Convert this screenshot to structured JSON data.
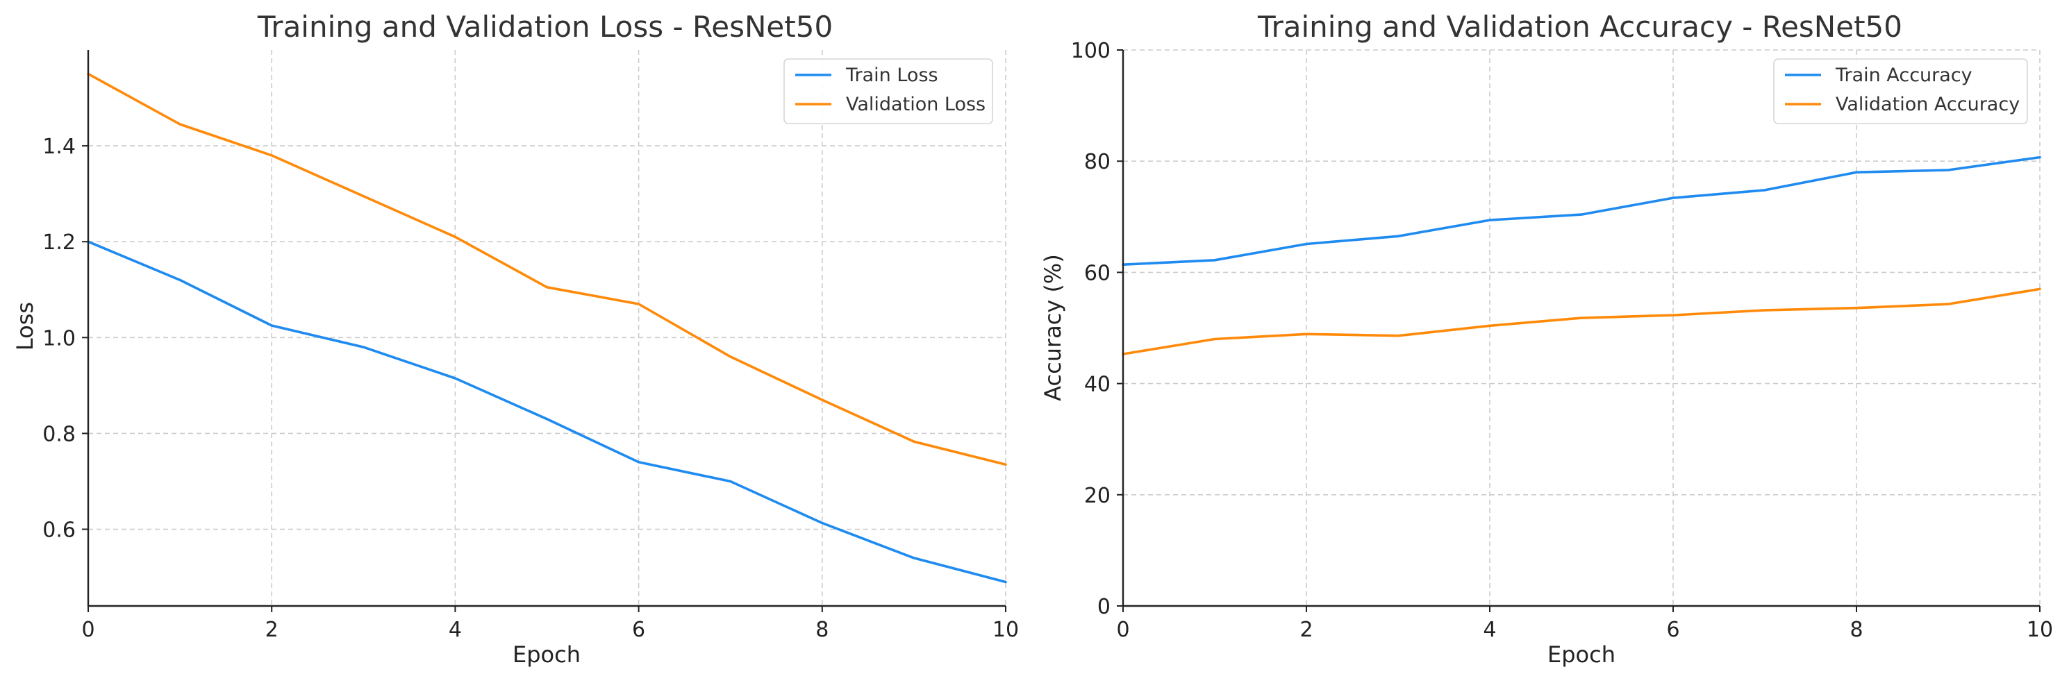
{
  "colors": {
    "train": "#1f8bf0",
    "validation": "#ff8a0a"
  },
  "chart_data": [
    {
      "type": "line",
      "title": "Training and Validation Loss - ResNet50",
      "xlabel": "Epoch",
      "ylabel": "Loss",
      "xlim": [
        0,
        10
      ],
      "ylim": [
        0.44,
        1.6
      ],
      "xticks": [
        0,
        2,
        4,
        6,
        8,
        10
      ],
      "yticks": [
        0.6,
        0.8,
        1.0,
        1.2,
        1.4
      ],
      "ytick_decimals": 1,
      "grid": true,
      "legend_position": "top-right",
      "x": [
        0,
        1,
        2,
        3,
        4,
        5,
        6,
        7,
        8,
        9,
        10
      ],
      "series": [
        {
          "name": "Train Loss",
          "color": "#1f8bf0",
          "values": [
            1.2,
            1.12,
            1.025,
            0.98,
            0.915,
            0.83,
            0.74,
            0.7,
            0.613,
            0.54,
            0.49
          ]
        },
        {
          "name": "Validation Loss",
          "color": "#ff8a0a",
          "values": [
            1.55,
            1.445,
            1.38,
            1.295,
            1.21,
            1.105,
            1.07,
            0.96,
            0.87,
            0.783,
            0.735
          ]
        }
      ]
    },
    {
      "type": "line",
      "title": "Training and Validation Accuracy - ResNet50",
      "xlabel": "Epoch",
      "ylabel": "Accuracy (%)",
      "xlim": [
        0,
        10
      ],
      "ylim": [
        0,
        100
      ],
      "xticks": [
        0,
        2,
        4,
        6,
        8,
        10
      ],
      "yticks": [
        0,
        20,
        40,
        60,
        80,
        100
      ],
      "ytick_decimals": 0,
      "grid": true,
      "legend_position": "top-right",
      "x": [
        0,
        1,
        2,
        3,
        4,
        5,
        6,
        7,
        8,
        9,
        10
      ],
      "series": [
        {
          "name": "Train Accuracy",
          "color": "#1f8bf0",
          "values": [
            61.4,
            62.2,
            65.1,
            66.5,
            69.4,
            70.4,
            73.4,
            74.8,
            78.0,
            78.4,
            80.7
          ]
        },
        {
          "name": "Validation Accuracy",
          "color": "#ff8a0a",
          "values": [
            45.3,
            48.0,
            48.9,
            48.6,
            50.4,
            51.8,
            52.3,
            53.2,
            53.6,
            54.3,
            57.0
          ]
        }
      ]
    }
  ]
}
